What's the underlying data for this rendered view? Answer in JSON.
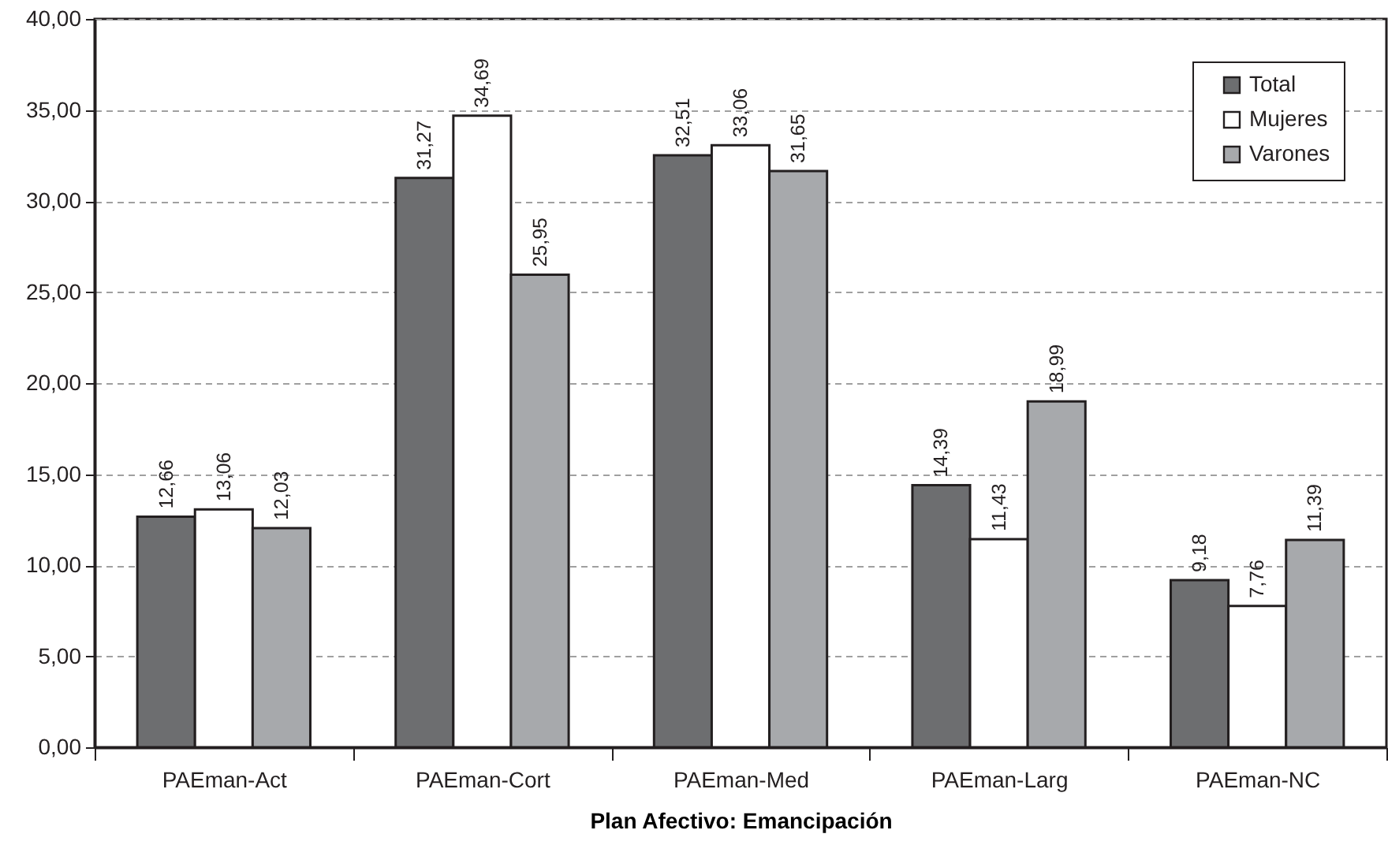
{
  "chart_data": {
    "type": "bar",
    "xlabel": "Plan Afectivo: Emancipación",
    "categories": [
      "PAEman-Act",
      "PAEman-Cort",
      "PAEman-Med",
      "PAEman-Larg",
      "PAEman-NC"
    ],
    "series": [
      {
        "name": "Total",
        "color": "#6d6e70",
        "values": [
          12.66,
          31.27,
          32.51,
          14.39,
          9.18
        ],
        "value_labels": [
          "12,66",
          "31,27",
          "32,51",
          "14,39",
          "9,18"
        ]
      },
      {
        "name": "Mujeres",
        "color": "#ffffff",
        "values": [
          13.06,
          34.69,
          33.06,
          11.43,
          7.76
        ],
        "value_labels": [
          "13,06",
          "34,69",
          "33,06",
          "11,43",
          "7,76"
        ]
      },
      {
        "name": "Varones",
        "color": "#a7a9ac",
        "values": [
          12.03,
          25.95,
          31.65,
          18.99,
          11.39
        ],
        "value_labels": [
          "12,03",
          "25,95",
          "31,65",
          "18,99",
          "11,39"
        ]
      }
    ],
    "ylim": [
      0,
      40
    ],
    "yticks": [
      {
        "value": 0,
        "label": "0,00"
      },
      {
        "value": 5,
        "label": "5,00"
      },
      {
        "value": 10,
        "label": "10,00"
      },
      {
        "value": 15,
        "label": "15,00"
      },
      {
        "value": 20,
        "label": "20,00"
      },
      {
        "value": 25,
        "label": "25,00"
      },
      {
        "value": 30,
        "label": "30,00"
      },
      {
        "value": 35,
        "label": "35,00"
      },
      {
        "value": 40,
        "label": "40,00"
      }
    ],
    "grid": "y",
    "legend": "top right"
  }
}
